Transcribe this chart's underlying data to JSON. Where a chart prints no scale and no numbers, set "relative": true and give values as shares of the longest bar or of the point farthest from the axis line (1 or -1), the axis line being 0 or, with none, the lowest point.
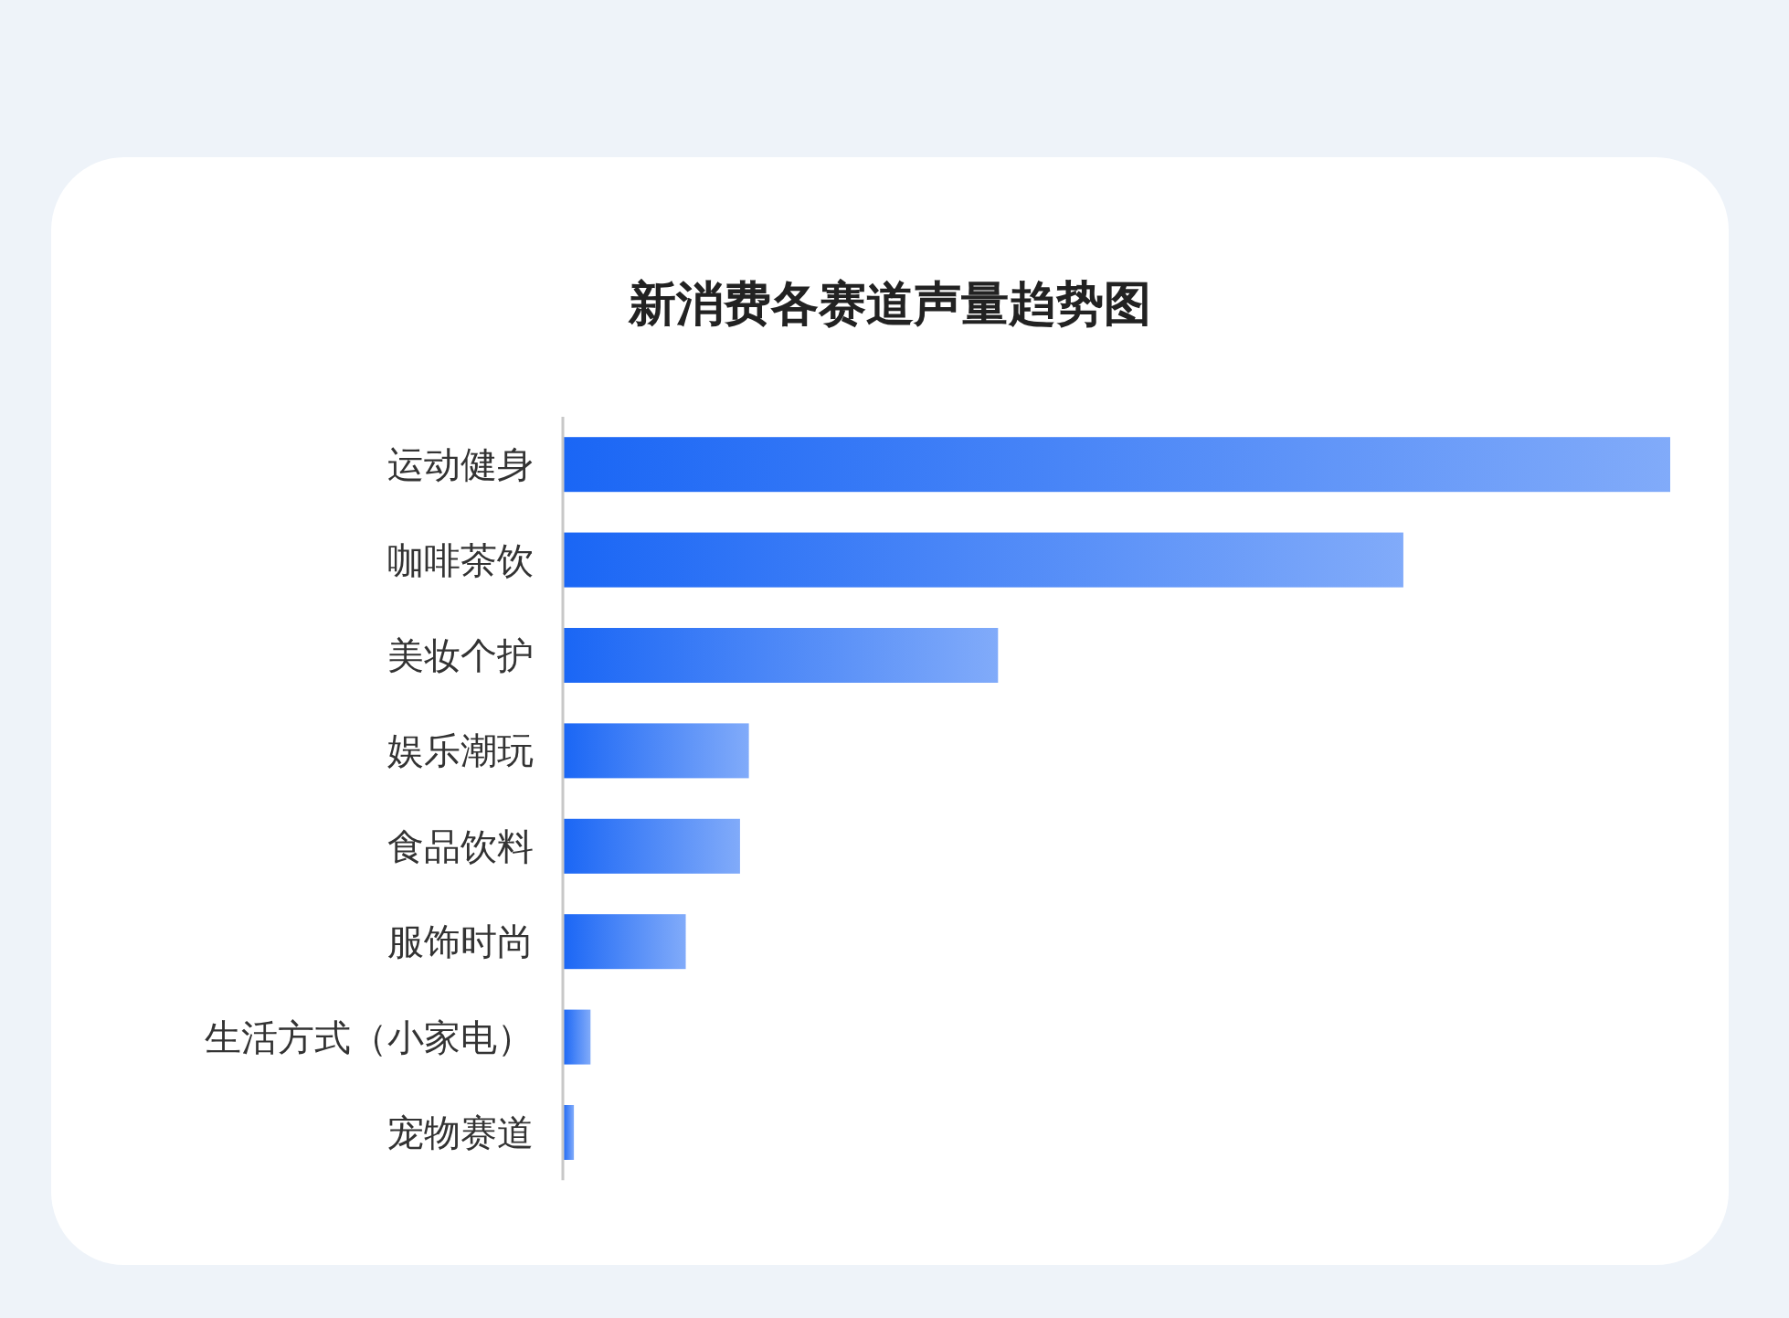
{
  "chart_data": {
    "type": "bar",
    "orientation": "horizontal",
    "relative": true,
    "title": "新消费各赛道声量趋势图",
    "categories": [
      "运动健身",
      "咖啡茶饮",
      "美妆个护",
      "娱乐潮玩",
      "食品饮料",
      "服饰时尚",
      "生活方式（小家电）",
      "宠物赛道"
    ],
    "values": [
      1,
      0.759,
      0.393,
      0.168,
      0.16,
      0.111,
      0.025,
      0.01
    ],
    "color": "#1a66f5"
  }
}
